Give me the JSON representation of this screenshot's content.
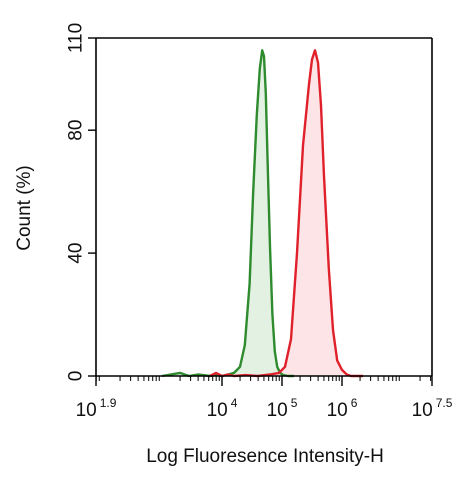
{
  "chart_data": {
    "type": "area",
    "xlabel": "Log Fluoresence Intensity-H",
    "ylabel": "Count  (%)",
    "x_scale": "log10",
    "xlim": [
      1.9,
      7.5
    ],
    "ylim": [
      0,
      110
    ],
    "x_ticks": [
      {
        "base": "10",
        "exp": "1.9",
        "value": 1.9
      },
      {
        "base": "10",
        "exp": "4",
        "value": 4
      },
      {
        "base": "10",
        "exp": "5",
        "value": 5
      },
      {
        "base": "10",
        "exp": "6",
        "value": 6
      },
      {
        "base": "10",
        "exp": "7.5",
        "value": 7.5
      }
    ],
    "y_ticks": [
      0,
      40,
      80,
      110
    ],
    "grid": false,
    "series": [
      {
        "color": "#2e8b2e",
        "fill": "#e3f1e3",
        "x": [
          3.0,
          3.3,
          3.45,
          3.6,
          3.8,
          3.9,
          4.0,
          4.1,
          4.2,
          4.3,
          4.38,
          4.46,
          4.52,
          4.58,
          4.63,
          4.67,
          4.7,
          4.73,
          4.76,
          4.8,
          4.84,
          4.88,
          4.92,
          4.97,
          5.02,
          5.1,
          5.2
        ],
        "values": [
          0,
          1,
          0,
          0.5,
          0,
          0.3,
          0,
          0.5,
          1,
          3,
          10,
          30,
          60,
          85,
          100,
          106,
          104,
          92,
          70,
          42,
          20,
          8,
          3,
          1,
          0.3,
          0,
          0
        ]
      },
      {
        "color": "#e0202a",
        "fill": "#fde4e6",
        "x": [
          3.8,
          3.9,
          4.0,
          4.1,
          4.2,
          4.4,
          4.6,
          4.8,
          4.95,
          5.05,
          5.15,
          5.25,
          5.35,
          5.45,
          5.5,
          5.55,
          5.6,
          5.65,
          5.7,
          5.78,
          5.85,
          5.92,
          6.0,
          6.08,
          6.15,
          6.25,
          6.35
        ],
        "values": [
          0,
          1,
          0,
          0.5,
          0,
          0.3,
          0,
          0.5,
          1,
          3,
          12,
          40,
          75,
          95,
          103,
          106,
          102,
          88,
          65,
          35,
          15,
          5,
          2,
          0.5,
          0,
          0,
          0
        ]
      }
    ]
  }
}
